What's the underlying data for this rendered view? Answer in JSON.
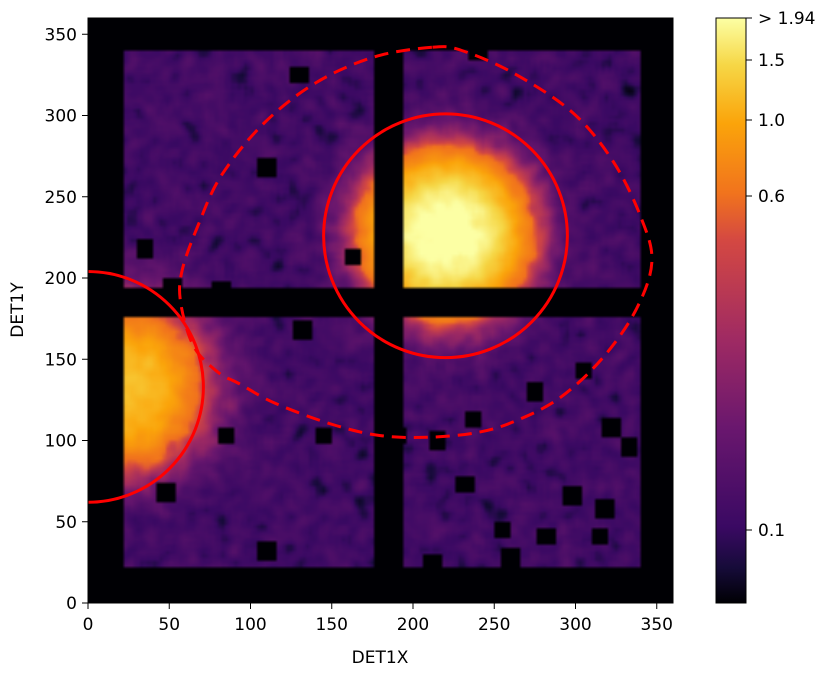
{
  "chart_data": {
    "type": "heatmap",
    "xlabel": "DET1X",
    "ylabel": "DET1Y",
    "xlim": [
      0,
      360
    ],
    "ylim": [
      0,
      360
    ],
    "x_ticks": [
      0,
      50,
      100,
      150,
      200,
      250,
      300,
      350
    ],
    "y_ticks": [
      0,
      50,
      100,
      150,
      200,
      250,
      300,
      350
    ],
    "colormap": "inferno",
    "colorbar": {
      "scale": "nonlinear",
      "range": [
        0.03,
        1.94
      ],
      "ticks": [
        {
          "value": 1.94,
          "label": "> 1.94"
        },
        {
          "value": 1.5,
          "label": "1.5"
        },
        {
          "value": 1.0,
          "label": "1.0"
        },
        {
          "value": 0.6,
          "label": "0.6"
        },
        {
          "value": 0.1,
          "label": "0.1"
        }
      ]
    },
    "detector": {
      "data_extent": {
        "x": [
          22,
          340
        ],
        "y": [
          22,
          340
        ]
      },
      "chip_gaps": {
        "x": [
          175,
          195
        ],
        "y": [
          175,
          195
        ]
      },
      "background_level": 0.22
    },
    "sources": [
      {
        "x": 220,
        "y": 227,
        "peak": 1.94,
        "core_radius": 38
      },
      {
        "x": 22,
        "y": 133,
        "peak": 1.1,
        "core_radius": 40,
        "half": "right"
      }
    ],
    "masked_regions": [
      {
        "x": 240,
        "y": 340
      },
      {
        "x": 130,
        "y": 325
      },
      {
        "x": 110,
        "y": 268
      },
      {
        "x": 35,
        "y": 218
      },
      {
        "x": 52,
        "y": 195
      },
      {
        "x": 82,
        "y": 193
      },
      {
        "x": 163,
        "y": 213
      },
      {
        "x": 132,
        "y": 168
      },
      {
        "x": 85,
        "y": 103
      },
      {
        "x": 145,
        "y": 103
      },
      {
        "x": 237,
        "y": 113
      },
      {
        "x": 215,
        "y": 100
      },
      {
        "x": 190,
        "y": 103
      },
      {
        "x": 275,
        "y": 130
      },
      {
        "x": 305,
        "y": 143
      },
      {
        "x": 322,
        "y": 108
      },
      {
        "x": 333,
        "y": 96
      },
      {
        "x": 232,
        "y": 73
      },
      {
        "x": 48,
        "y": 68
      },
      {
        "x": 298,
        "y": 66
      },
      {
        "x": 318,
        "y": 58
      },
      {
        "x": 255,
        "y": 45
      },
      {
        "x": 282,
        "y": 41
      },
      {
        "x": 315,
        "y": 41
      },
      {
        "x": 260,
        "y": 28
      },
      {
        "x": 110,
        "y": 32
      },
      {
        "x": 212,
        "y": 25
      }
    ],
    "regions": [
      {
        "shape": "circle",
        "style": "solid",
        "color": "#ff0000",
        "cx": 220,
        "cy": 226,
        "r": 75
      },
      {
        "shape": "circle",
        "style": "solid",
        "color": "#ff0000",
        "cx": 0,
        "cy": 133,
        "r": 71
      },
      {
        "shape": "polygon",
        "style": "dashed",
        "color": "#ff0000",
        "points": [
          [
            212,
            342
          ],
          [
            230,
            340
          ],
          [
            262,
            326
          ],
          [
            298,
            302
          ],
          [
            323,
            272
          ],
          [
            340,
            238
          ],
          [
            347,
            210
          ],
          [
            337,
            180
          ],
          [
            316,
            150
          ],
          [
            290,
            126
          ],
          [
            263,
            112
          ],
          [
            240,
            105
          ],
          [
            210,
            102
          ],
          [
            180,
            103
          ],
          [
            150,
            110
          ],
          [
            115,
            123
          ],
          [
            93,
            135
          ],
          [
            80,
            142
          ],
          [
            65,
            158
          ],
          [
            57,
            185
          ],
          [
            58,
            205
          ],
          [
            68,
            233
          ],
          [
            82,
            263
          ],
          [
            108,
            295
          ],
          [
            140,
            320
          ],
          [
            176,
            336
          ],
          [
            212,
            342
          ]
        ]
      }
    ]
  }
}
